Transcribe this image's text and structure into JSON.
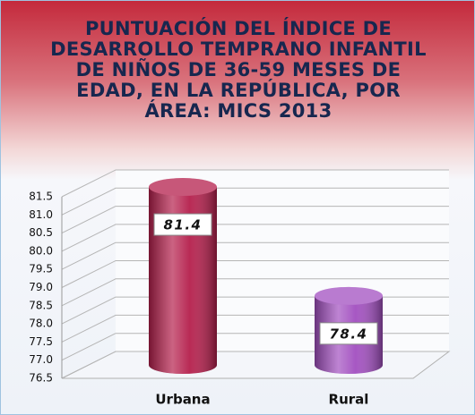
{
  "chart_data": {
    "type": "bar",
    "title": "PUNTUACIÓN DEL ÍNDICE DE DESARROLLO TEMPRANO INFANTIL DE NIÑOS DE 36-59 MESES DE EDAD, EN LA REPÚBLICA, POR ÁREA: MICS 2013",
    "categories": [
      "Urbana",
      "Rural"
    ],
    "values": [
      81.4,
      78.4
    ],
    "colors": [
      "#b51f4c",
      "#a24fc0"
    ],
    "ylim": [
      76.5,
      81.5
    ],
    "yticks": [
      76.5,
      {
        "value": 77,
        "label": "77.0"
      },
      77.5,
      {
        "value": 78,
        "label": "78.0"
      },
      78.5,
      {
        "value": 79,
        "label": "79.0"
      },
      79.5,
      {
        "value": 80,
        "label": "80.0"
      },
      80.5,
      {
        "value": 81,
        "label": "81.0"
      },
      81.5
    ],
    "grid": true
  }
}
